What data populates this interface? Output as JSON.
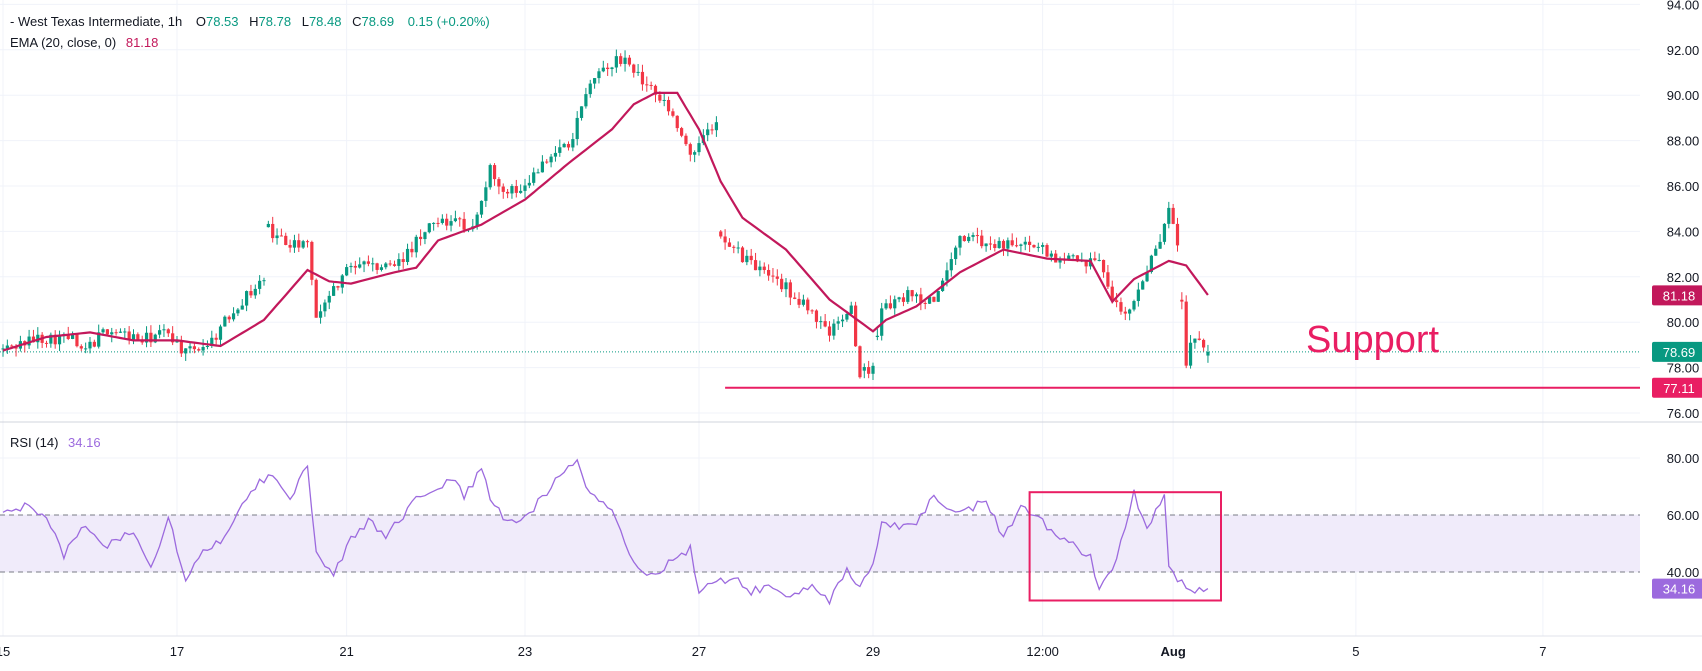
{
  "colors": {
    "up": "#089981",
    "down": "#f23645",
    "ema": "#c2185b",
    "rsi": "#9c6ade",
    "annotation": "#e91e63",
    "rsi_band": "#f0ebfa"
  },
  "legend": {
    "symbol": "- West Texas Intermediate",
    "interval": "1h",
    "o_label": "O",
    "o_value": "78.53",
    "h_label": "H",
    "h_value": "78.78",
    "l_label": "L",
    "l_value": "78.48",
    "c_label": "C",
    "c_value": "78.69",
    "change": "0.15 (+0.20%)",
    "ema_label": "EMA (20, close, 0)",
    "ema_value": "81.18",
    "rsi_label": "RSI (14)",
    "rsi_value": "34.16"
  },
  "annotation": {
    "support_text": "Support"
  },
  "chart_data": [
    {
      "type": "candlestick",
      "title": "West Texas Intermediate, 1h",
      "y_ticks": [
        "76.00",
        "78.00",
        "80.00",
        "82.00",
        "84.00",
        "86.00",
        "88.00",
        "90.00",
        "92.00",
        "94.00"
      ],
      "ylim": [
        76,
        94
      ],
      "x_tick_labels": [
        "15",
        "17",
        "21",
        "23",
        "27",
        "29",
        "12:00",
        "Aug",
        "5",
        "7"
      ],
      "x_tick_bars": [
        0,
        40,
        79,
        120,
        160,
        200,
        239,
        269,
        311,
        354
      ],
      "last_price": 78.69,
      "last_price_label": "78.69",
      "ema_last_label": "81.18",
      "support_level": 77.11,
      "support_label": "77.11",
      "ema_anchors": [
        [
          0,
          78.75
        ],
        [
          10,
          79.35
        ],
        [
          20,
          79.55
        ],
        [
          30,
          79.2
        ],
        [
          40,
          79.2
        ],
        [
          50,
          78.95
        ],
        [
          60,
          80.1
        ],
        [
          70,
          82.3
        ],
        [
          75,
          81.8
        ],
        [
          80,
          81.7
        ],
        [
          90,
          82.2
        ],
        [
          95,
          82.4
        ],
        [
          100,
          83.6
        ],
        [
          110,
          84.3
        ],
        [
          120,
          85.4
        ],
        [
          130,
          87
        ],
        [
          140,
          88.5
        ],
        [
          145,
          89.6
        ],
        [
          150,
          90.1
        ],
        [
          155,
          90.1
        ],
        [
          160,
          88.5
        ],
        [
          165,
          86.2
        ],
        [
          170,
          84.6
        ],
        [
          180,
          83.2
        ],
        [
          190,
          81
        ],
        [
          200,
          79.6
        ],
        [
          203,
          80.1
        ],
        [
          210,
          80.7
        ],
        [
          220,
          82.2
        ],
        [
          230,
          83.2
        ],
        [
          240,
          82.8
        ],
        [
          250,
          82.7
        ],
        [
          255,
          80.9
        ],
        [
          260,
          81.9
        ],
        [
          268,
          82.7
        ],
        [
          272,
          82.5
        ],
        [
          277,
          81.2
        ]
      ],
      "price_anchors": [
        [
          0,
          78.8
        ],
        [
          8,
          79.3
        ],
        [
          16,
          79.3
        ],
        [
          18,
          78.6
        ],
        [
          24,
          79.7
        ],
        [
          32,
          79.2
        ],
        [
          38,
          79.6
        ],
        [
          42,
          78.6
        ],
        [
          48,
          79.2
        ],
        [
          54,
          80.8
        ],
        [
          60,
          81.9
        ],
        [
          61,
          84.1
        ],
        [
          66,
          83.3
        ],
        [
          70,
          83.8
        ],
        [
          72,
          80.4
        ],
        [
          80,
          82.6
        ],
        [
          90,
          82.5
        ],
        [
          100,
          84.5
        ],
        [
          108,
          84.2
        ],
        [
          112,
          86.7
        ],
        [
          116,
          85.6
        ],
        [
          120,
          86.2
        ],
        [
          130,
          87.8
        ],
        [
          136,
          90.8
        ],
        [
          142,
          91.6
        ],
        [
          150,
          90.2
        ],
        [
          158,
          87.6
        ],
        [
          164,
          88.6
        ],
        [
          165,
          83.9
        ],
        [
          172,
          82.5
        ],
        [
          180,
          81.5
        ],
        [
          190,
          79.6
        ],
        [
          195,
          80.6
        ],
        [
          197,
          77.6
        ],
        [
          200,
          78.2
        ],
        [
          202,
          80.6
        ],
        [
          208,
          81.2
        ],
        [
          214,
          80.8
        ],
        [
          220,
          83.8
        ],
        [
          230,
          83.3
        ],
        [
          236,
          83.6
        ],
        [
          242,
          82.9
        ],
        [
          252,
          82.6
        ],
        [
          255,
          80.8
        ],
        [
          258,
          80.3
        ],
        [
          262,
          81.8
        ],
        [
          266,
          83.6
        ],
        [
          268,
          84.8
        ],
        [
          270,
          83.4
        ],
        [
          272,
          78.3
        ],
        [
          274,
          79.4
        ],
        [
          277,
          78.69
        ]
      ],
      "gaps_after_bars": [
        60,
        164,
        197,
        200,
        270
      ]
    },
    {
      "type": "line",
      "title": "RSI (14)",
      "y_ticks": [
        "40.00",
        "60.00",
        "80.00"
      ],
      "ylim": [
        25,
        90
      ],
      "band": [
        40,
        60
      ],
      "last_value": 34.16,
      "last_value_label": "34.16",
      "rsi_anchors": [
        [
          0,
          60
        ],
        [
          5,
          63
        ],
        [
          10,
          58
        ],
        [
          14,
          46
        ],
        [
          18,
          56
        ],
        [
          24,
          49
        ],
        [
          30,
          55
        ],
        [
          34,
          42
        ],
        [
          38,
          59
        ],
        [
          42,
          38
        ],
        [
          46,
          48
        ],
        [
          50,
          50
        ],
        [
          55,
          65
        ],
        [
          58,
          70
        ],
        [
          62,
          75
        ],
        [
          66,
          66
        ],
        [
          70,
          78
        ],
        [
          72,
          46
        ],
        [
          76,
          40
        ],
        [
          80,
          51
        ],
        [
          84,
          58
        ],
        [
          88,
          53
        ],
        [
          92,
          60
        ],
        [
          96,
          67
        ],
        [
          100,
          70
        ],
        [
          104,
          73
        ],
        [
          106,
          66
        ],
        [
          110,
          76
        ],
        [
          112,
          66
        ],
        [
          116,
          57
        ],
        [
          120,
          59
        ],
        [
          124,
          66
        ],
        [
          128,
          75
        ],
        [
          132,
          80
        ],
        [
          134,
          69
        ],
        [
          140,
          62
        ],
        [
          144,
          47
        ],
        [
          146,
          40
        ],
        [
          150,
          39
        ],
        [
          154,
          45
        ],
        [
          158,
          48
        ],
        [
          160,
          33
        ],
        [
          164,
          36
        ],
        [
          168,
          39
        ],
        [
          172,
          33
        ],
        [
          176,
          35
        ],
        [
          180,
          31
        ],
        [
          186,
          36
        ],
        [
          190,
          30
        ],
        [
          194,
          40
        ],
        [
          197,
          34
        ],
        [
          200,
          42
        ],
        [
          202,
          58
        ],
        [
          206,
          56
        ],
        [
          210,
          57
        ],
        [
          214,
          67
        ],
        [
          218,
          61
        ],
        [
          222,
          62
        ],
        [
          226,
          65
        ],
        [
          230,
          52
        ],
        [
          234,
          63
        ],
        [
          238,
          60
        ],
        [
          242,
          52
        ],
        [
          246,
          50
        ],
        [
          250,
          45
        ],
        [
          252,
          33
        ],
        [
          256,
          45
        ],
        [
          260,
          68
        ],
        [
          263,
          55
        ],
        [
          267,
          68
        ],
        [
          268,
          42
        ],
        [
          271,
          36
        ],
        [
          273,
          33
        ],
        [
          277,
          34.16
        ]
      ],
      "highlight_box_bars": [
        236,
        280
      ]
    }
  ]
}
